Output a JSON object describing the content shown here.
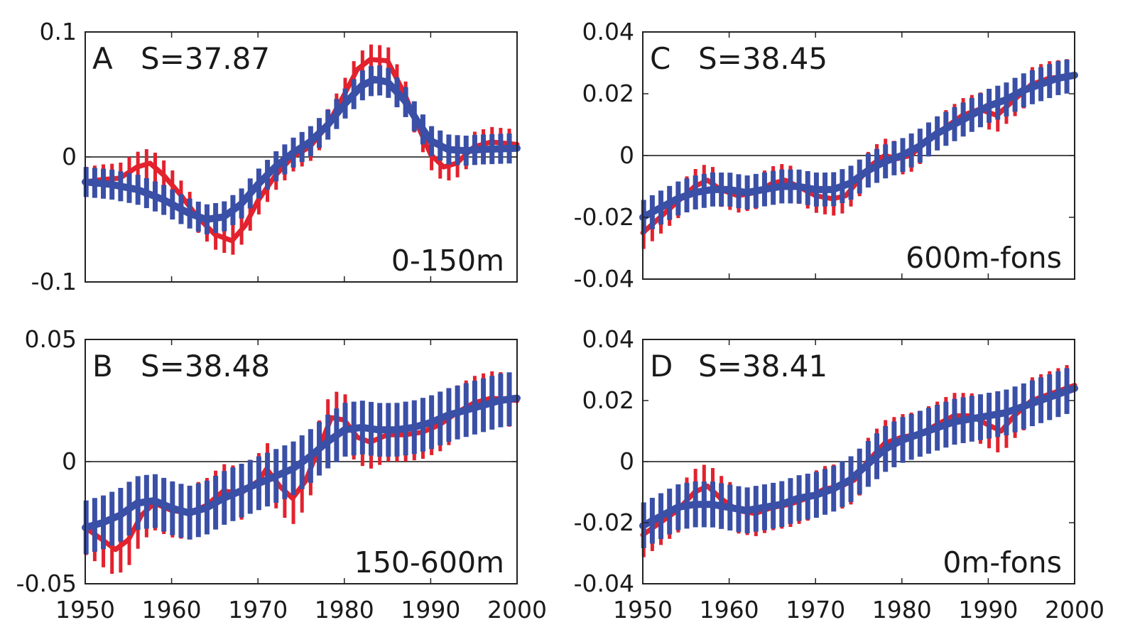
{
  "colors": {
    "red": "#e2222e",
    "blue": "#3a4fa6",
    "frame": "#222222"
  },
  "chart_data": [
    {
      "id": "A",
      "type": "line",
      "letter": "A",
      "salinity": "S=37.87",
      "depth": "0-150m",
      "xlim": [
        1950,
        2000
      ],
      "ylim": [
        -0.1,
        0.1
      ],
      "yticks": [
        {
          "v": 0.1,
          "label": "0.1"
        },
        {
          "v": 0,
          "label": "0"
        },
        {
          "v": -0.1,
          "label": "-0.1"
        }
      ],
      "xtick_labels": [],
      "error_half": 0.012,
      "series": [
        {
          "color": "red",
          "points": [
            [
              1950,
              -0.02
            ],
            [
              1952,
              -0.018
            ],
            [
              1954,
              -0.017
            ],
            [
              1956,
              -0.008
            ],
            [
              1957.5,
              -0.005
            ],
            [
              1959,
              -0.014
            ],
            [
              1961,
              -0.03
            ],
            [
              1963,
              -0.048
            ],
            [
              1965,
              -0.062
            ],
            [
              1967,
              -0.067
            ],
            [
              1968.5,
              -0.055
            ],
            [
              1970,
              -0.035
            ],
            [
              1972,
              -0.015
            ],
            [
              1974,
              0
            ],
            [
              1976,
              0.008
            ],
            [
              1978,
              0.025
            ],
            [
              1980,
              0.05
            ],
            [
              1981.5,
              0.07
            ],
            [
              1983,
              0.078
            ],
            [
              1985,
              0.077
            ],
            [
              1987,
              0.05
            ],
            [
              1988.5,
              0.025
            ],
            [
              1990,
              0.002
            ],
            [
              1991.5,
              -0.008
            ],
            [
              1993,
              -0.005
            ],
            [
              1995,
              0.008
            ],
            [
              1997,
              0.012
            ],
            [
              2000,
              0.01
            ]
          ]
        },
        {
          "color": "blue",
          "points": [
            [
              1950,
              -0.02
            ],
            [
              1953,
              -0.022
            ],
            [
              1956,
              -0.026
            ],
            [
              1959,
              -0.034
            ],
            [
              1962,
              -0.045
            ],
            [
              1964,
              -0.05
            ],
            [
              1966,
              -0.048
            ],
            [
              1968,
              -0.038
            ],
            [
              1970,
              -0.022
            ],
            [
              1972,
              -0.008
            ],
            [
              1974,
              0.003
            ],
            [
              1976,
              0.012
            ],
            [
              1978,
              0.025
            ],
            [
              1980,
              0.042
            ],
            [
              1982,
              0.057
            ],
            [
              1983.5,
              0.062
            ],
            [
              1985,
              0.06
            ],
            [
              1987,
              0.045
            ],
            [
              1988.5,
              0.028
            ],
            [
              1990,
              0.013
            ],
            [
              1992,
              0.006
            ],
            [
              1994,
              0.005
            ],
            [
              1996,
              0.006
            ],
            [
              2000,
              0.007
            ]
          ]
        }
      ]
    },
    {
      "id": "C",
      "type": "line",
      "letter": "C",
      "salinity": "S=38.45",
      "depth": "600m-fons",
      "xlim": [
        1950,
        2000
      ],
      "ylim": [
        -0.04,
        0.04
      ],
      "yticks": [
        {
          "v": 0.04,
          "label": "0.04"
        },
        {
          "v": 0.02,
          "label": "0.02"
        },
        {
          "v": 0,
          "label": "0"
        },
        {
          "v": -0.02,
          "label": "-0.02"
        },
        {
          "v": -0.04,
          "label": "-0.04"
        }
      ],
      "xtick_labels": [],
      "error_half": 0.0055,
      "series": [
        {
          "color": "red",
          "points": [
            [
              1950,
              -0.025
            ],
            [
              1952,
              -0.02
            ],
            [
              1954,
              -0.015
            ],
            [
              1956,
              -0.01
            ],
            [
              1957.5,
              -0.008
            ],
            [
              1959,
              -0.011
            ],
            [
              1961,
              -0.013
            ],
            [
              1963,
              -0.012
            ],
            [
              1965,
              -0.009
            ],
            [
              1966.5,
              -0.008
            ],
            [
              1968,
              -0.01
            ],
            [
              1970,
              -0.013
            ],
            [
              1972,
              -0.014
            ],
            [
              1973.5,
              -0.013
            ],
            [
              1975,
              -0.008
            ],
            [
              1976.5,
              -0.003
            ],
            [
              1978,
              0
            ],
            [
              1979.5,
              -0.001
            ],
            [
              1981,
              0
            ],
            [
              1983,
              0.005
            ],
            [
              1985,
              0.009
            ],
            [
              1987,
              0.013
            ],
            [
              1989,
              0.015
            ],
            [
              1991,
              0.013
            ],
            [
              1993,
              0.018
            ],
            [
              1995,
              0.023
            ],
            [
              1997,
              0.025
            ],
            [
              2000,
              0.026
            ]
          ]
        },
        {
          "color": "blue",
          "points": [
            [
              1950,
              -0.02
            ],
            [
              1952,
              -0.017
            ],
            [
              1954,
              -0.014
            ],
            [
              1956,
              -0.012
            ],
            [
              1958,
              -0.011
            ],
            [
              1960,
              -0.011
            ],
            [
              1962,
              -0.012
            ],
            [
              1964,
              -0.011
            ],
            [
              1966,
              -0.01
            ],
            [
              1968,
              -0.01
            ],
            [
              1970,
              -0.011
            ],
            [
              1972,
              -0.011
            ],
            [
              1974,
              -0.009
            ],
            [
              1976,
              -0.005
            ],
            [
              1978,
              -0.002
            ],
            [
              1980,
              0
            ],
            [
              1982,
              0.003
            ],
            [
              1984,
              0.007
            ],
            [
              1986,
              0.01
            ],
            [
              1988,
              0.013
            ],
            [
              1990,
              0.016
            ],
            [
              1992,
              0.018
            ],
            [
              1994,
              0.021
            ],
            [
              1996,
              0.023
            ],
            [
              1998,
              0.025
            ],
            [
              2000,
              0.026
            ]
          ]
        }
      ]
    },
    {
      "id": "B",
      "type": "line",
      "letter": "B",
      "salinity": "S=38.48",
      "depth": "150-600m",
      "xlim": [
        1950,
        2000
      ],
      "ylim": [
        -0.05,
        0.05
      ],
      "yticks": [
        {
          "v": 0.05,
          "label": "0.05"
        },
        {
          "v": 0,
          "label": "0"
        },
        {
          "v": -0.05,
          "label": "-0.05"
        }
      ],
      "xtick_labels": [
        "1950",
        "1960",
        "1970",
        "1980",
        "1990",
        "2000"
      ],
      "error_half": 0.011,
      "series": [
        {
          "color": "red",
          "points": [
            [
              1950,
              -0.027
            ],
            [
              1952,
              -0.032
            ],
            [
              1953.5,
              -0.036
            ],
            [
              1955,
              -0.032
            ],
            [
              1956.5,
              -0.022
            ],
            [
              1958,
              -0.017
            ],
            [
              1960,
              -0.02
            ],
            [
              1962,
              -0.021
            ],
            [
              1964,
              -0.018
            ],
            [
              1966,
              -0.012
            ],
            [
              1968,
              -0.013
            ],
            [
              1970,
              -0.008
            ],
            [
              1971,
              -0.003
            ],
            [
              1972.5,
              -0.01
            ],
            [
              1974,
              -0.015
            ],
            [
              1975.5,
              -0.008
            ],
            [
              1977,
              0.005
            ],
            [
              1978.5,
              0.018
            ],
            [
              1980,
              0.017
            ],
            [
              1981.5,
              0.01
            ],
            [
              1983,
              0.008
            ],
            [
              1985,
              0.011
            ],
            [
              1987,
              0.011
            ],
            [
              1989,
              0.012
            ],
            [
              1991,
              0.015
            ],
            [
              1993,
              0.02
            ],
            [
              1995,
              0.024
            ],
            [
              1997,
              0.026
            ],
            [
              2000,
              0.025
            ]
          ]
        },
        {
          "color": "blue",
          "points": [
            [
              1950,
              -0.027
            ],
            [
              1952,
              -0.025
            ],
            [
              1954,
              -0.022
            ],
            [
              1956,
              -0.017
            ],
            [
              1958,
              -0.016
            ],
            [
              1960,
              -0.019
            ],
            [
              1962,
              -0.021
            ],
            [
              1964,
              -0.019
            ],
            [
              1966,
              -0.015
            ],
            [
              1968,
              -0.012
            ],
            [
              1970,
              -0.009
            ],
            [
              1972,
              -0.006
            ],
            [
              1974,
              -0.003
            ],
            [
              1976,
              0.002
            ],
            [
              1978,
              0.008
            ],
            [
              1980,
              0.013
            ],
            [
              1982,
              0.014
            ],
            [
              1984,
              0.013
            ],
            [
              1986,
              0.013
            ],
            [
              1988,
              0.014
            ],
            [
              1990,
              0.016
            ],
            [
              1992,
              0.019
            ],
            [
              1994,
              0.021
            ],
            [
              1996,
              0.023
            ],
            [
              1998,
              0.025
            ],
            [
              2000,
              0.026
            ]
          ]
        }
      ]
    },
    {
      "id": "D",
      "type": "line",
      "letter": "D",
      "salinity": "S=38.41",
      "depth": "0m-fons",
      "xlim": [
        1950,
        2000
      ],
      "ylim": [
        -0.04,
        0.04
      ],
      "yticks": [
        {
          "v": 0.04,
          "label": "0.04"
        },
        {
          "v": 0.02,
          "label": "0.02"
        },
        {
          "v": 0,
          "label": "0"
        },
        {
          "v": -0.02,
          "label": "-0.02"
        },
        {
          "v": -0.04,
          "label": "-0.04"
        }
      ],
      "xtick_labels": [
        "1950",
        "1960",
        "1970",
        "1980",
        "1990",
        "2000"
      ],
      "error_half": 0.0075,
      "series": [
        {
          "color": "red",
          "points": [
            [
              1950,
              -0.024
            ],
            [
              1952,
              -0.02
            ],
            [
              1954,
              -0.016
            ],
            [
              1956,
              -0.01
            ],
            [
              1957.5,
              -0.008
            ],
            [
              1959,
              -0.012
            ],
            [
              1961,
              -0.016
            ],
            [
              1963,
              -0.017
            ],
            [
              1965,
              -0.015
            ],
            [
              1967,
              -0.014
            ],
            [
              1969,
              -0.012
            ],
            [
              1971,
              -0.009
            ],
            [
              1973,
              -0.008
            ],
            [
              1974.5,
              -0.006
            ],
            [
              1976,
              0
            ],
            [
              1978,
              0.006
            ],
            [
              1980,
              0.008
            ],
            [
              1982,
              0.009
            ],
            [
              1984,
              0.012
            ],
            [
              1986,
              0.015
            ],
            [
              1988,
              0.015
            ],
            [
              1990,
              0.012
            ],
            [
              1991.5,
              0.01
            ],
            [
              1993,
              0.015
            ],
            [
              1995,
              0.02
            ],
            [
              1997,
              0.022
            ],
            [
              2000,
              0.025
            ]
          ]
        },
        {
          "color": "blue",
          "points": [
            [
              1950,
              -0.021
            ],
            [
              1952,
              -0.018
            ],
            [
              1954,
              -0.015
            ],
            [
              1956,
              -0.014
            ],
            [
              1958,
              -0.014
            ],
            [
              1960,
              -0.015
            ],
            [
              1962,
              -0.016
            ],
            [
              1964,
              -0.015
            ],
            [
              1966,
              -0.014
            ],
            [
              1968,
              -0.012
            ],
            [
              1970,
              -0.011
            ],
            [
              1972,
              -0.009
            ],
            [
              1974,
              -0.006
            ],
            [
              1976,
              -0.001
            ],
            [
              1978,
              0.004
            ],
            [
              1980,
              0.007
            ],
            [
              1982,
              0.009
            ],
            [
              1984,
              0.011
            ],
            [
              1986,
              0.013
            ],
            [
              1988,
              0.014
            ],
            [
              1990,
              0.015
            ],
            [
              1992,
              0.016
            ],
            [
              1994,
              0.018
            ],
            [
              1996,
              0.02
            ],
            [
              1998,
              0.022
            ],
            [
              2000,
              0.024
            ]
          ]
        }
      ]
    }
  ]
}
